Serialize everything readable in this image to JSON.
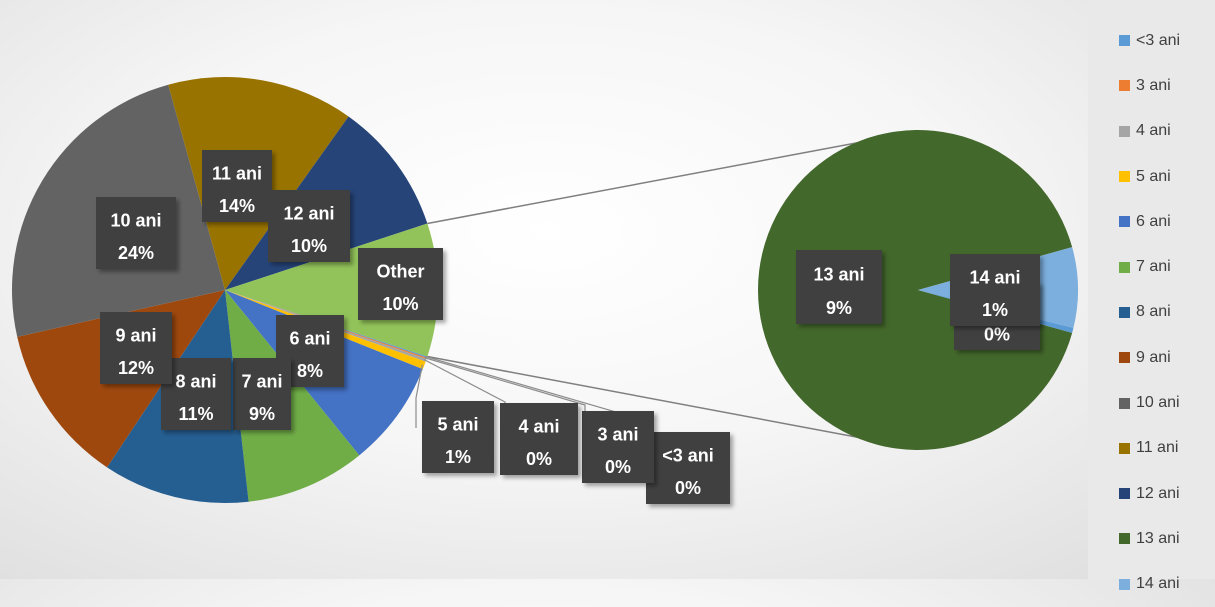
{
  "chart_data": {
    "type": "pie",
    "subtype": "pie-of-pie",
    "title": "",
    "legend_position": "right",
    "categories": [
      "<3 ani",
      "3 ani",
      "4 ani",
      "5 ani",
      "6 ani",
      "7 ani",
      "8 ani",
      "9 ani",
      "10 ani",
      "11 ani",
      "12 ani",
      "13 ani",
      "14 ani"
    ],
    "colors": [
      "#5B9BD5",
      "#ED7D31",
      "#A5A5A5",
      "#FFC000",
      "#4472C4",
      "#70AD47",
      "#255E91",
      "#9E480E",
      "#636363",
      "#997300",
      "#264478",
      "#43682B",
      "#7CAFDD"
    ],
    "values": [
      0.1,
      0.1,
      0.2,
      0.6,
      8,
      9,
      11,
      12,
      24,
      14,
      10,
      9,
      1
    ],
    "value_labels": [
      "0%",
      "0%",
      "0%",
      "1%",
      "8%",
      "9%",
      "11%",
      "12%",
      "24%",
      "14%",
      "10%",
      "9%",
      "1%"
    ],
    "main_pie": {
      "slices": [
        "<3 ani",
        "3 ani",
        "4 ani",
        "5 ani",
        "6 ani",
        "7 ani",
        "8 ani",
        "9 ani",
        "10 ani",
        "11 ani",
        "12 ani"
      ],
      "other_label": "Other",
      "other_value_label": "10%",
      "other_value": 10
    },
    "secondary_pie": {
      "slices": [
        "13 ani",
        "14 ani",
        "<3 ani"
      ],
      "values": [
        9,
        0.8,
        0.05
      ],
      "value_labels": [
        "9%",
        "1%",
        "0%"
      ]
    }
  }
}
